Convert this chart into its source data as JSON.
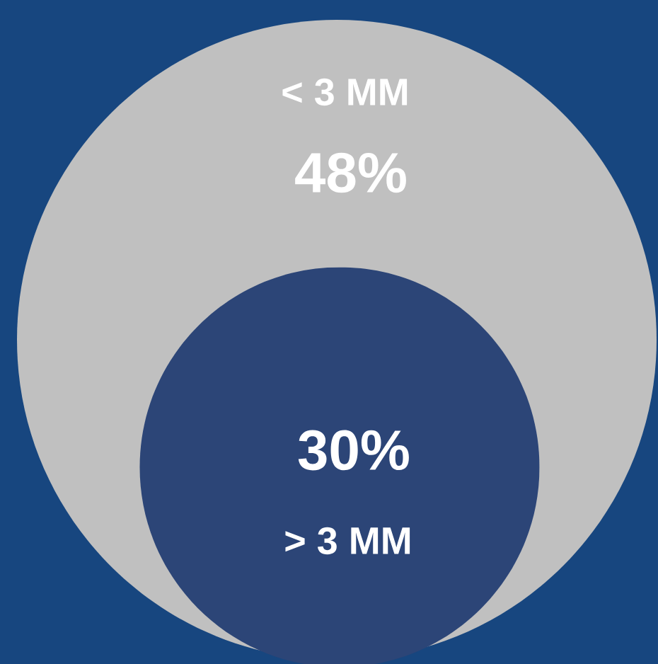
{
  "chart_data": {
    "type": "other",
    "categories": [
      "< 3 MM",
      "> 3 MM"
    ],
    "values": [
      48,
      30
    ],
    "value_labels": [
      "48%",
      "30%"
    ],
    "colors": [
      "#c0c0c0",
      "#2c4577"
    ]
  }
}
